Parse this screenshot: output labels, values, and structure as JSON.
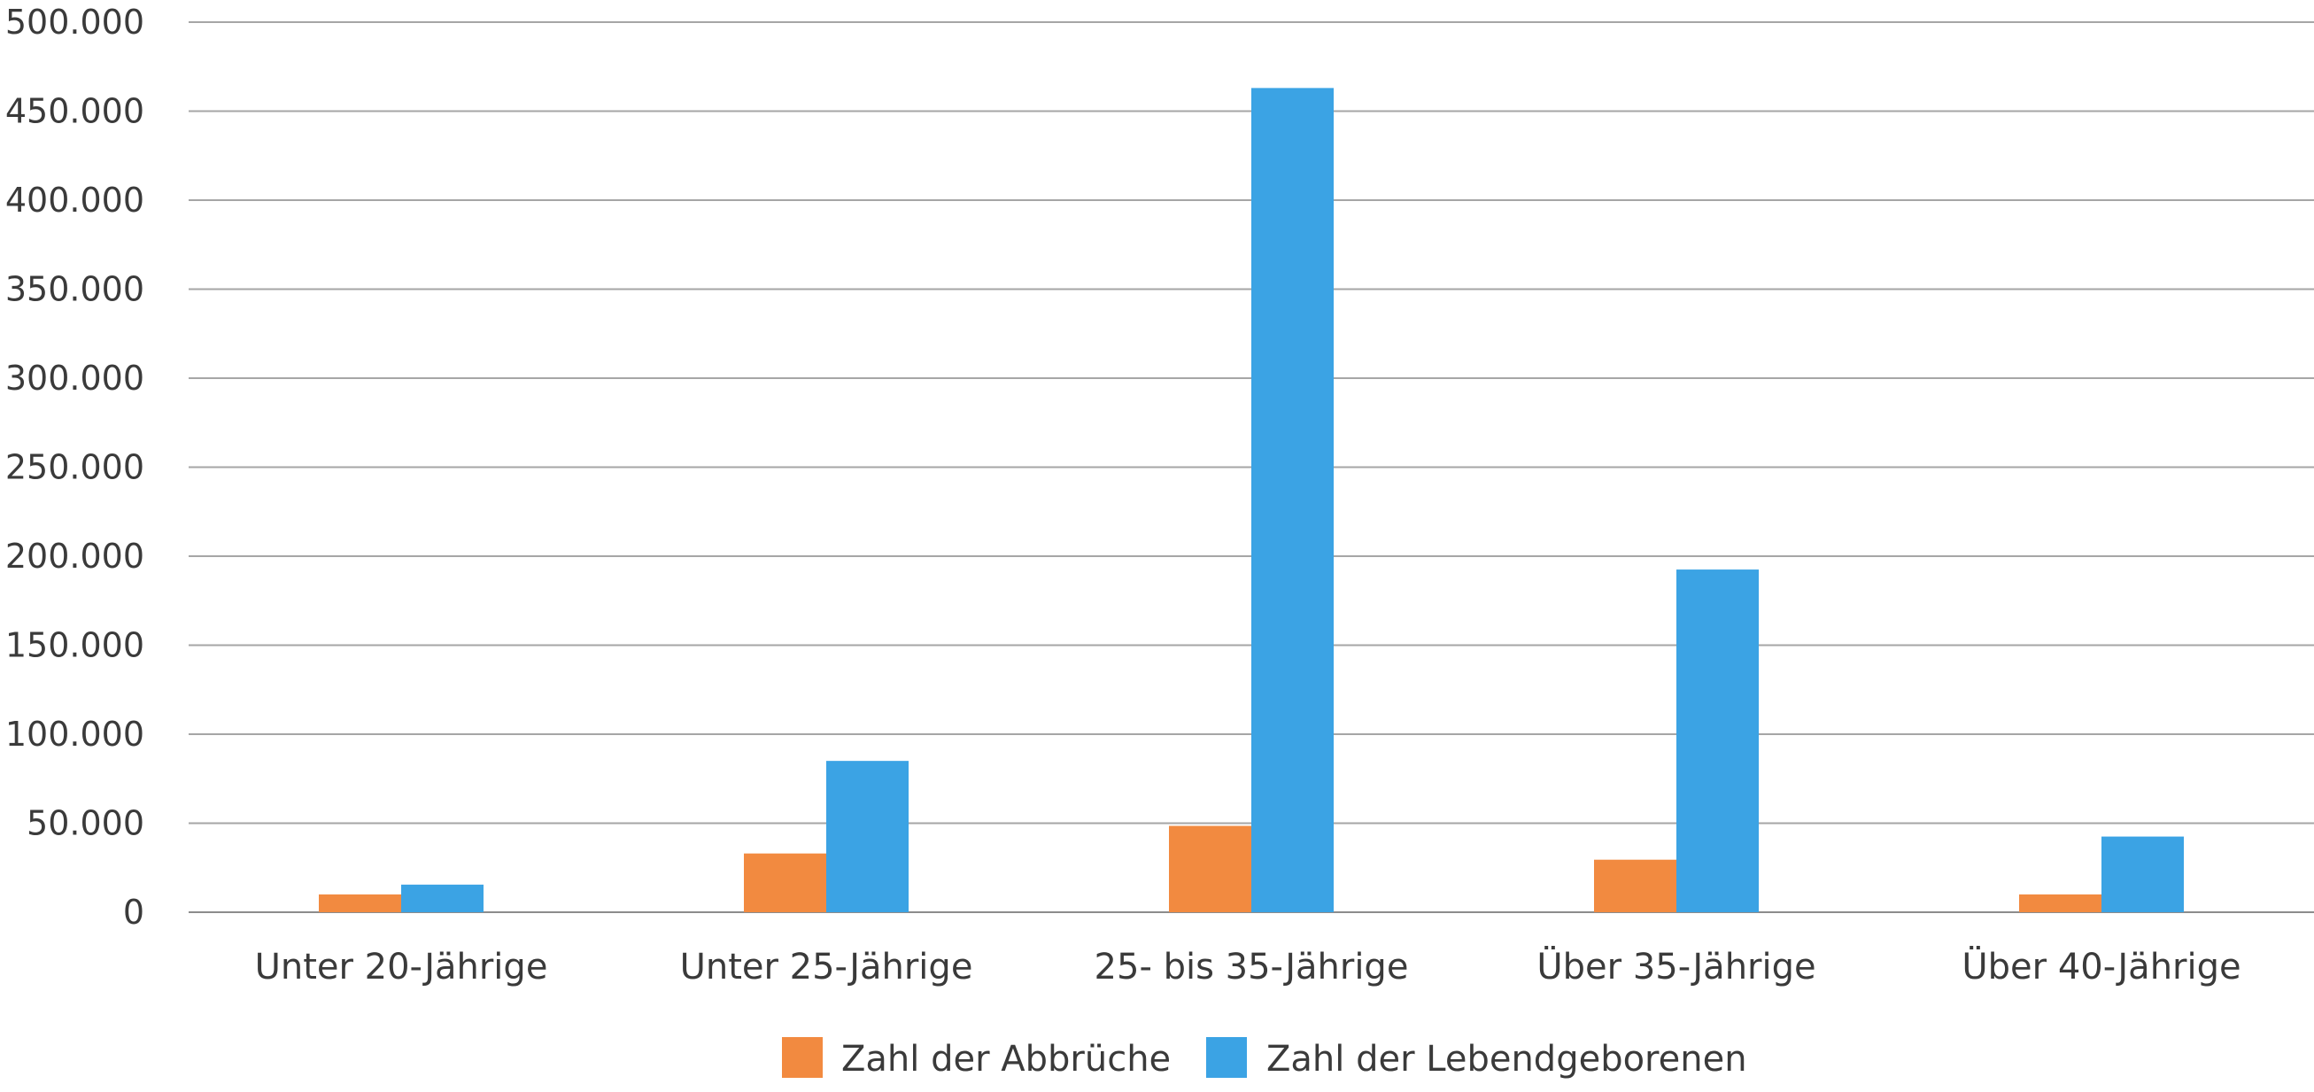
{
  "chart_data": {
    "type": "bar",
    "title": "",
    "xlabel": "",
    "ylabel": "",
    "categories": [
      "Unter 20-Jährige",
      "Unter 25-Jährige",
      "25- bis 35-Jährige",
      "Über 35-Jährige",
      "Über 40-Jährige"
    ],
    "series": [
      {
        "name": "Zahl der Abbrüche",
        "color": "#f28a40",
        "values": [
          10000,
          33000,
          48500,
          29500,
          10000
        ]
      },
      {
        "name": "Zahl der Lebendgeborenen",
        "color": "#3ba3e4",
        "values": [
          15500,
          85000,
          463000,
          192500,
          42500
        ]
      }
    ],
    "ylim": [
      0,
      500000
    ],
    "y_ticks": [
      0,
      50000,
      100000,
      150000,
      200000,
      250000,
      300000,
      350000,
      400000,
      450000,
      500000
    ],
    "y_tick_labels": [
      "0",
      "50.000",
      "100.000",
      "150.000",
      "200.000",
      "250.000",
      "300.000",
      "350.000",
      "400.000",
      "450.000",
      "500.000"
    ],
    "grid": true,
    "legend_position": "bottom-center"
  }
}
